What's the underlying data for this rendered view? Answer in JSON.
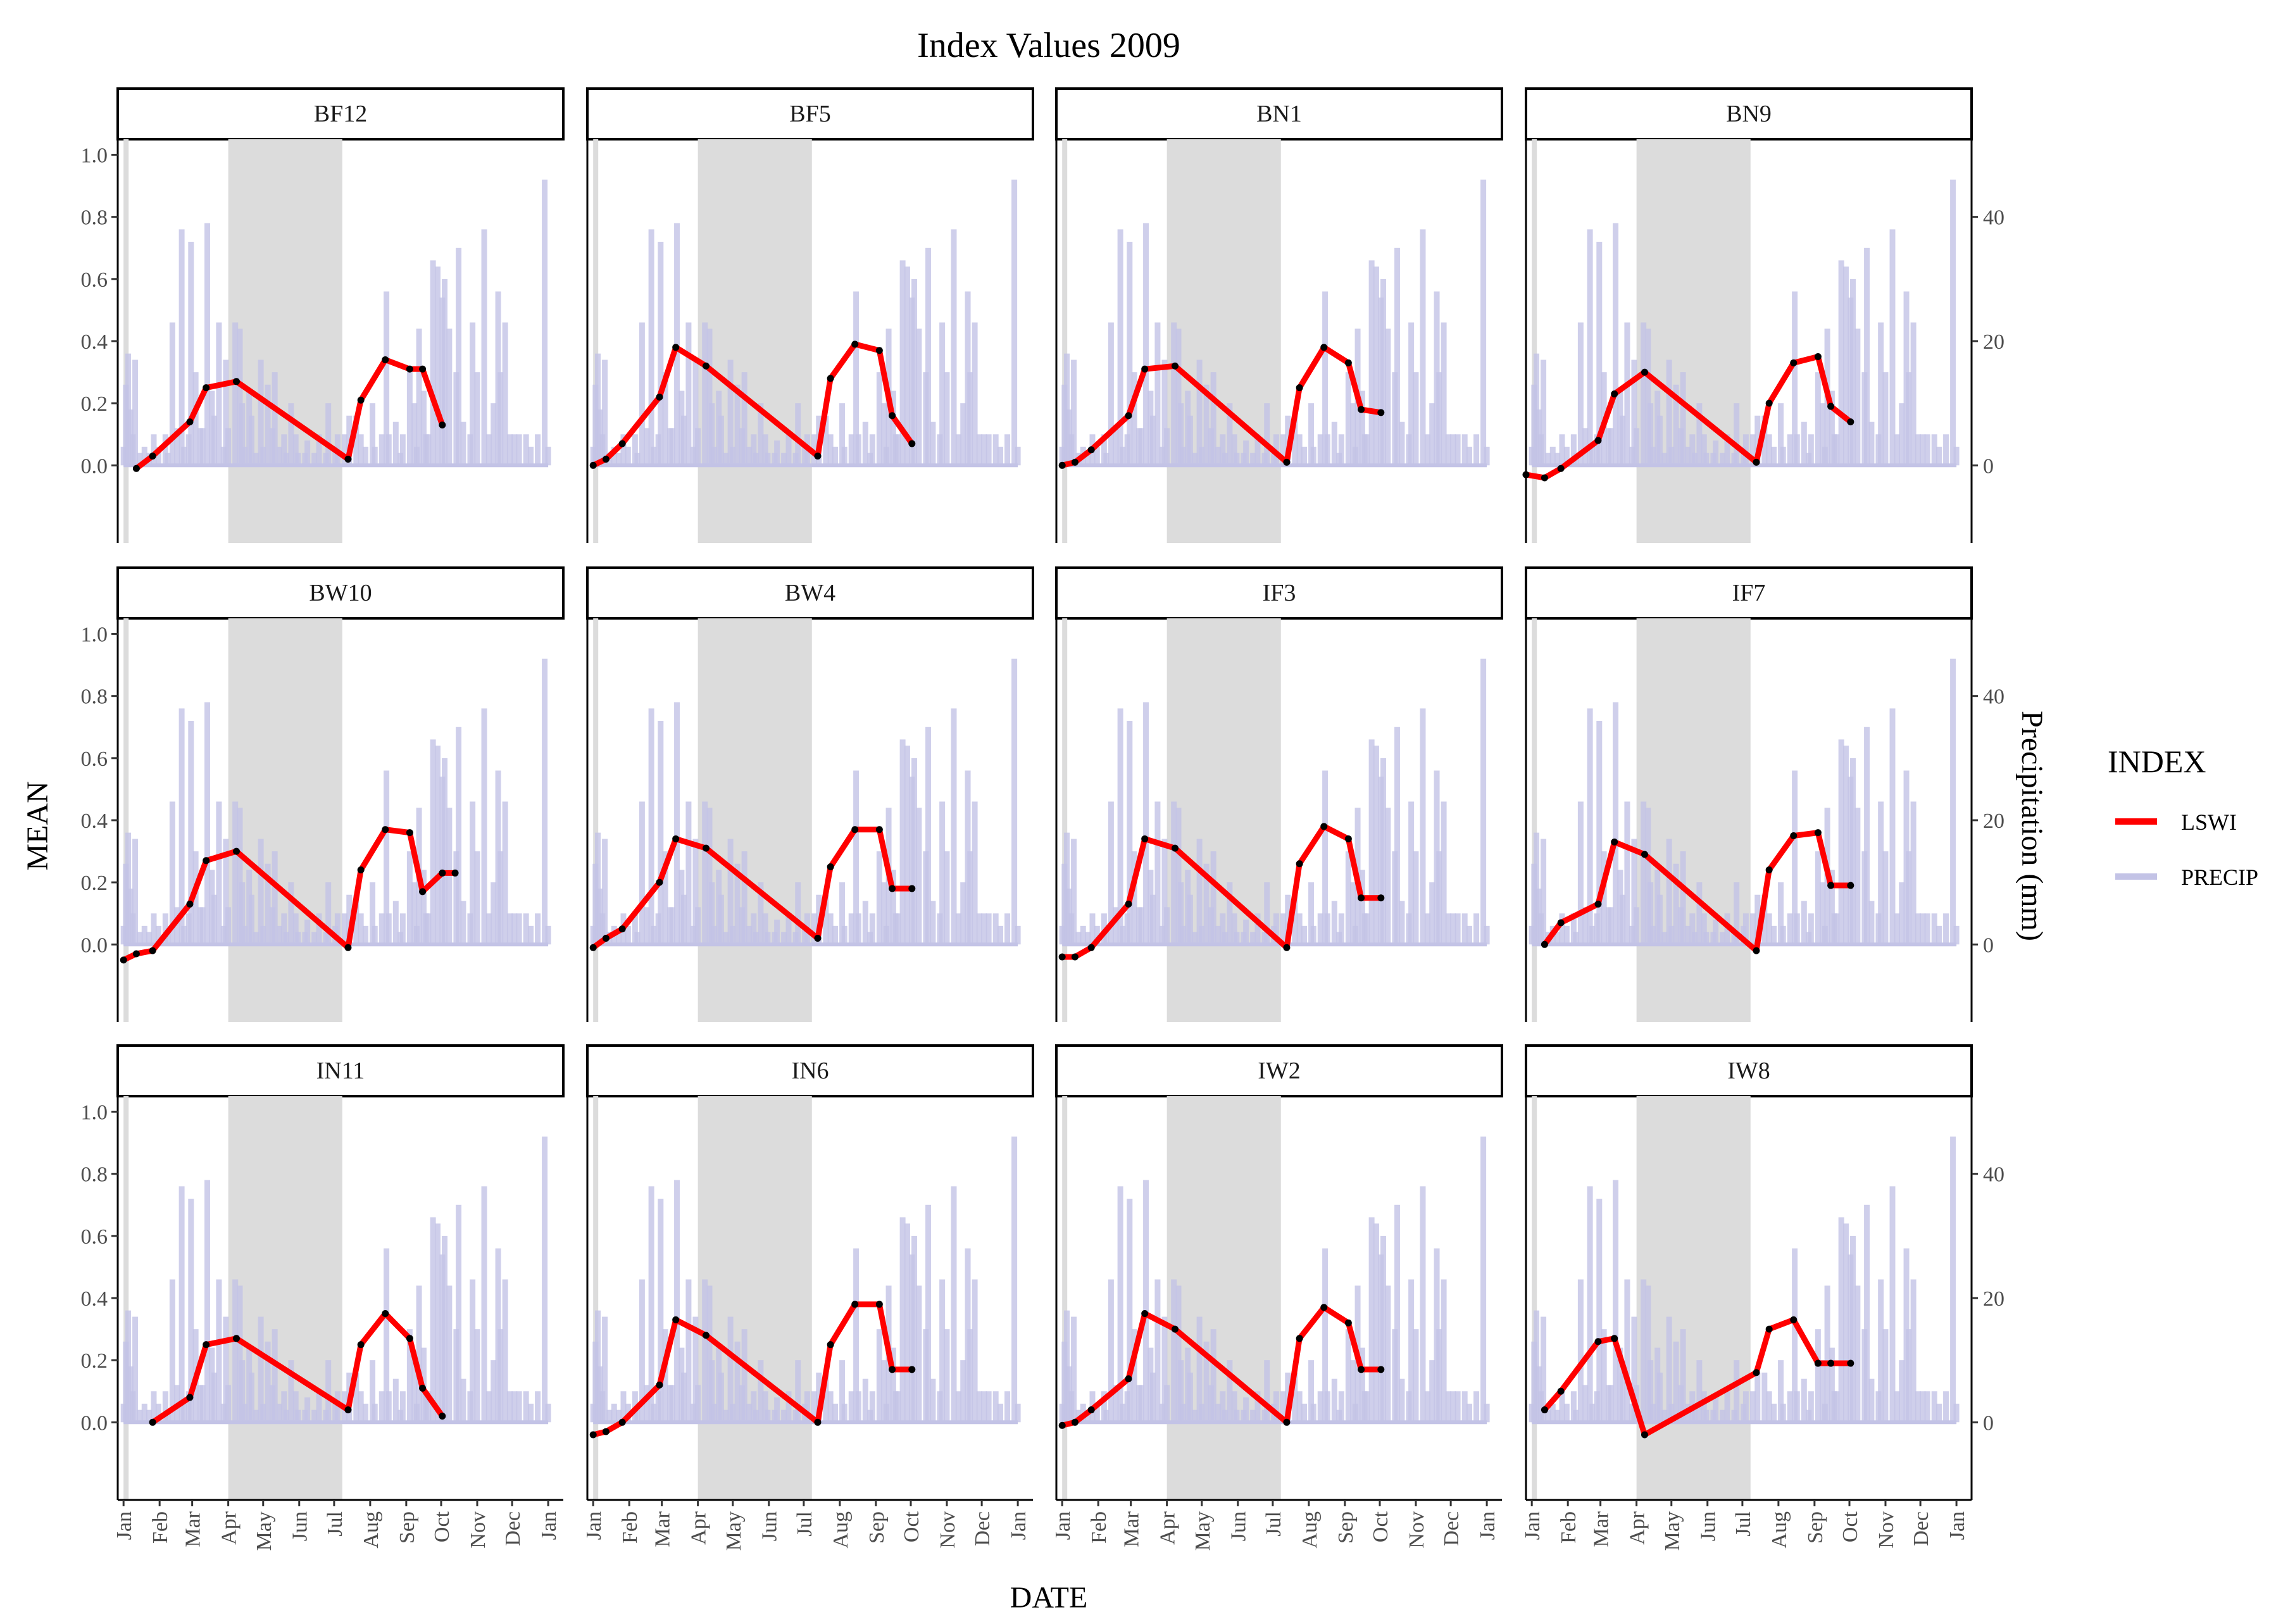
{
  "chart_data": {
    "type": "line",
    "title": "Index Values 2009",
    "xlabel": "DATE",
    "ylabel": "MEAN",
    "y2label": "Precipitation (mm)",
    "ylim": [
      -0.25,
      1.05
    ],
    "yticks": [
      0.0,
      0.2,
      0.4,
      0.6,
      0.8,
      1.0
    ],
    "y2lim": [
      -12.5,
      52.5
    ],
    "y2ticks": [
      0,
      20,
      40
    ],
    "precip_scale": 0.02,
    "xlim": [
      -5,
      378
    ],
    "x_ticks_doy": [
      0,
      31,
      59,
      90,
      120,
      151,
      181,
      212,
      243,
      273,
      304,
      334,
      365
    ],
    "x_tick_labels": [
      "Jan",
      "Feb",
      "Mar",
      "Apr",
      "May",
      "Jun",
      "Jul",
      "Aug",
      "Sep",
      "Oct",
      "Nov",
      "Dec",
      "Jan"
    ],
    "shaded_periods": [
      [
        0,
        2
      ],
      [
        90,
        188
      ]
    ],
    "legend": {
      "title": "INDEX",
      "entries": [
        {
          "name": "LSWI",
          "color": "#ff0000"
        },
        {
          "name": "PRECIP",
          "color": "#c3c3e6"
        }
      ]
    },
    "precip": {
      "name": "PRECIP",
      "doy": [
        0,
        2,
        4,
        6,
        8,
        10,
        14,
        18,
        22,
        26,
        30,
        36,
        38,
        42,
        46,
        50,
        52,
        56,
        58,
        62,
        66,
        68,
        72,
        76,
        78,
        82,
        86,
        88,
        90,
        96,
        100,
        102,
        104,
        108,
        110,
        114,
        118,
        120,
        124,
        128,
        130,
        134,
        138,
        140,
        144,
        148,
        150,
        156,
        158,
        164,
        168,
        174,
        176,
        182,
        184,
        190,
        194,
        200,
        204,
        208,
        214,
        216,
        222,
        226,
        228,
        234,
        238,
        240,
        246,
        250,
        252,
        254,
        258,
        260,
        262,
        266,
        270,
        274,
        276,
        280,
        286,
        288,
        292,
        298,
        300,
        304,
        310,
        314,
        318,
        322,
        324,
        328,
        332,
        336,
        340,
        346,
        350,
        356,
        362,
        365
      ],
      "values": [
        3,
        13,
        18,
        9,
        5,
        17,
        2,
        3,
        2,
        5,
        3,
        5,
        2,
        23,
        6,
        38,
        3,
        5,
        36,
        15,
        6,
        6,
        39,
        12,
        8,
        23,
        3,
        17,
        6,
        23,
        22,
        10,
        3,
        12,
        8,
        2,
        17,
        3,
        13,
        6,
        15,
        3,
        5,
        2,
        10,
        5,
        2,
        2,
        4,
        2,
        5,
        2,
        10,
        3,
        5,
        5,
        8,
        8,
        5,
        3,
        10,
        3,
        5,
        28,
        5,
        7,
        2,
        5,
        15,
        10,
        3,
        22,
        12,
        5,
        5,
        33,
        32,
        27,
        30,
        22,
        15,
        35,
        7,
        5,
        23,
        15,
        38,
        5,
        10,
        28,
        15,
        23,
        5,
        5,
        5,
        5,
        3,
        5,
        46,
        3
      ]
    },
    "series": [
      {
        "name": "BF12",
        "doy": [
          11,
          25,
          57,
          71,
          97,
          193,
          204,
          225,
          246,
          257,
          274
        ],
        "values": [
          -0.01,
          0.03,
          0.14,
          0.25,
          0.27,
          0.02,
          0.21,
          0.34,
          0.31,
          0.31,
          0.13
        ]
      },
      {
        "name": "BF5",
        "doy": [
          0,
          11,
          25,
          57,
          71,
          97,
          193,
          204,
          225,
          246,
          257,
          274
        ],
        "values": [
          0.0,
          0.02,
          0.07,
          0.22,
          0.38,
          0.32,
          0.03,
          0.28,
          0.39,
          0.37,
          0.16,
          0.07
        ]
      },
      {
        "name": "BN1",
        "doy": [
          0,
          11,
          25,
          57,
          71,
          97,
          193,
          204,
          225,
          246,
          257,
          274
        ],
        "values": [
          0.0,
          0.01,
          0.05,
          0.16,
          0.31,
          0.32,
          0.01,
          0.25,
          0.38,
          0.33,
          0.18,
          0.17
        ]
      },
      {
        "name": "BN9",
        "doy": [
          -5,
          11,
          25,
          57,
          71,
          97,
          193,
          204,
          225,
          246,
          257,
          274
        ],
        "values": [
          -0.03,
          -0.04,
          -0.01,
          0.08,
          0.23,
          0.3,
          0.01,
          0.2,
          0.33,
          0.35,
          0.19,
          0.14
        ]
      },
      {
        "name": "BW10",
        "doy": [
          0,
          11,
          25,
          57,
          71,
          97,
          193,
          204,
          225,
          246,
          257,
          274,
          285
        ],
        "values": [
          -0.05,
          -0.03,
          -0.02,
          0.13,
          0.27,
          0.3,
          -0.01,
          0.24,
          0.37,
          0.36,
          0.17,
          0.23,
          0.23
        ]
      },
      {
        "name": "BW4",
        "doy": [
          0,
          11,
          25,
          57,
          71,
          97,
          193,
          204,
          225,
          246,
          257,
          274
        ],
        "values": [
          -0.01,
          0.02,
          0.05,
          0.2,
          0.34,
          0.31,
          0.02,
          0.25,
          0.37,
          0.37,
          0.18,
          0.18
        ]
      },
      {
        "name": "IF3",
        "doy": [
          0,
          11,
          25,
          57,
          71,
          97,
          193,
          204,
          225,
          246,
          257,
          274
        ],
        "values": [
          -0.04,
          -0.04,
          -0.01,
          0.13,
          0.34,
          0.31,
          -0.01,
          0.26,
          0.38,
          0.34,
          0.15,
          0.15
        ]
      },
      {
        "name": "IF7",
        "doy": [
          11,
          25,
          57,
          71,
          97,
          193,
          204,
          225,
          246,
          257,
          274
        ],
        "values": [
          0.0,
          0.07,
          0.13,
          0.33,
          0.29,
          -0.02,
          0.24,
          0.35,
          0.36,
          0.19,
          0.19
        ]
      },
      {
        "name": "IN11",
        "doy": [
          25,
          57,
          71,
          97,
          193,
          204,
          225,
          246,
          257,
          274
        ],
        "values": [
          0.0,
          0.08,
          0.25,
          0.27,
          0.04,
          0.25,
          0.35,
          0.27,
          0.11,
          0.02
        ]
      },
      {
        "name": "IN6",
        "doy": [
          0,
          11,
          25,
          57,
          71,
          97,
          193,
          204,
          225,
          246,
          257,
          274
        ],
        "values": [
          -0.04,
          -0.03,
          0.0,
          0.12,
          0.33,
          0.28,
          0.0,
          0.25,
          0.38,
          0.38,
          0.17,
          0.17
        ]
      },
      {
        "name": "IW2",
        "doy": [
          0,
          11,
          25,
          57,
          71,
          97,
          193,
          204,
          225,
          246,
          257,
          274
        ],
        "values": [
          -0.01,
          0.0,
          0.04,
          0.14,
          0.35,
          0.3,
          0.0,
          0.27,
          0.37,
          0.32,
          0.17,
          0.17
        ]
      },
      {
        "name": "IW8",
        "doy": [
          11,
          25,
          57,
          71,
          97,
          193,
          204,
          225,
          246,
          257,
          274
        ],
        "values": [
          0.04,
          0.1,
          0.26,
          0.27,
          -0.04,
          0.16,
          0.3,
          0.33,
          0.19,
          0.19,
          0.19
        ]
      }
    ]
  }
}
